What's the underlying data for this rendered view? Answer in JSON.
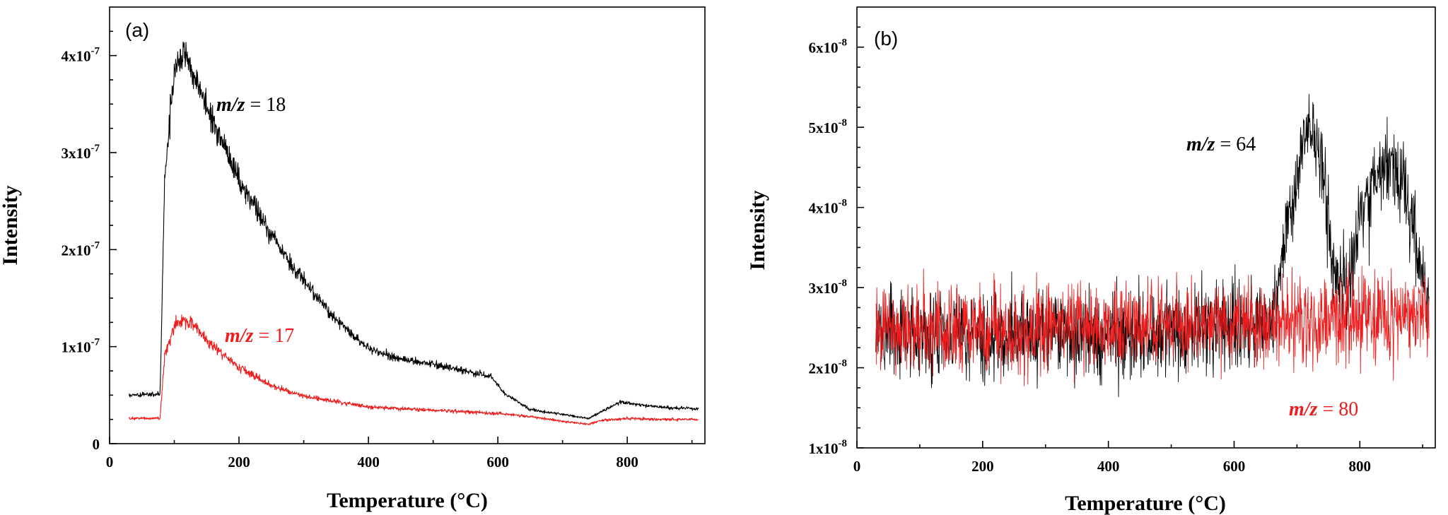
{
  "chart_data": [
    {
      "type": "line",
      "panel_label": "(a)",
      "xlabel": "Temperature (°C)",
      "ylabel": "Intensity",
      "xlim": [
        0,
        920
      ],
      "ylim": [
        0,
        4.5e-07
      ],
      "x_ticks": [
        0,
        200,
        400,
        600,
        800
      ],
      "y_ticks": [
        {
          "value": 0,
          "mantissa": "0",
          "exp": ""
        },
        {
          "value": 1e-07,
          "mantissa": "1x10",
          "exp": "-7"
        },
        {
          "value": 2e-07,
          "mantissa": "2x10",
          "exp": "-7"
        },
        {
          "value": 3e-07,
          "mantissa": "3x10",
          "exp": "-7"
        },
        {
          "value": 4e-07,
          "mantissa": "4x10",
          "exp": "-7"
        }
      ],
      "series": [
        {
          "name": "m/z = 18",
          "label_italic": "m/z",
          "label_rest": " = 18",
          "color": "#000000",
          "noise": 0.04,
          "x": [
            30,
            78,
            85,
            100,
            115,
            130,
            150,
            200,
            250,
            300,
            350,
            400,
            450,
            500,
            550,
            590,
            610,
            650,
            700,
            740,
            760,
            790,
            820,
            860,
            910
          ],
          "y": [
            5e-08,
            5.1e-08,
            2.7e-07,
            3.85e-07,
            4e-07,
            3.82e-07,
            3.5e-07,
            2.72e-07,
            2.15e-07,
            1.68e-07,
            1.28e-07,
            9.8e-08,
            8.7e-08,
            8.2e-08,
            7.5e-08,
            6.9e-08,
            5.2e-08,
            3.5e-08,
            3e-08,
            2.6e-08,
            3.3e-08,
            4.3e-08,
            4e-08,
            3.7e-08,
            3.6e-08
          ]
        },
        {
          "name": "m/z = 17",
          "label_italic": "m/z",
          "label_rest": " = 17",
          "color": "#ee1c1c",
          "noise": 0.05,
          "x": [
            30,
            78,
            85,
            100,
            115,
            130,
            150,
            200,
            250,
            300,
            350,
            400,
            450,
            500,
            550,
            600,
            650,
            700,
            740,
            760,
            800,
            850,
            910
          ],
          "y": [
            2.6e-08,
            2.6e-08,
            9e-08,
            1.22e-07,
            1.28e-07,
            1.23e-07,
            1.07e-07,
            7.8e-08,
            6e-08,
            4.9e-08,
            4.3e-08,
            3.8e-08,
            3.6e-08,
            3.45e-08,
            3.3e-08,
            3.1e-08,
            2.8e-08,
            2.3e-08,
            2e-08,
            2.4e-08,
            2.6e-08,
            2.5e-08,
            2.5e-08
          ]
        }
      ]
    },
    {
      "type": "line",
      "panel_label": "(b)",
      "xlabel": "Temperature (°C)",
      "ylabel": "Intensity",
      "xlim": [
        0,
        920
      ],
      "ylim": [
        1e-08,
        6.5e-08
      ],
      "x_ticks": [
        0,
        200,
        400,
        600,
        800
      ],
      "y_ticks": [
        {
          "value": 1e-08,
          "mantissa": "1x10",
          "exp": "-8"
        },
        {
          "value": 2e-08,
          "mantissa": "2x10",
          "exp": "-8"
        },
        {
          "value": 3e-08,
          "mantissa": "3x10",
          "exp": "-8"
        },
        {
          "value": 4e-08,
          "mantissa": "4x10",
          "exp": "-8"
        },
        {
          "value": 5e-08,
          "mantissa": "5x10",
          "exp": "-8"
        },
        {
          "value": 6e-08,
          "mantissa": "6x10",
          "exp": "-8"
        }
      ],
      "series": [
        {
          "name": "m/z = 64",
          "label_italic": "m/z",
          "label_rest": " = 64",
          "color": "#000000",
          "noise": 0.2,
          "x": [
            30,
            200,
            400,
            600,
            660,
            680,
            700,
            720,
            740,
            760,
            780,
            800,
            830,
            850,
            870,
            890,
            910
          ],
          "y": [
            2.4e-08,
            2.4e-08,
            2.4e-08,
            2.45e-08,
            2.6e-08,
            3.5e-08,
            4.4e-08,
            5.1e-08,
            4.5e-08,
            3.2e-08,
            3e-08,
            3.9e-08,
            4.4e-08,
            4.6e-08,
            4.3e-08,
            3.5e-08,
            2.8e-08
          ]
        },
        {
          "name": "m/z = 80",
          "label_italic": "m/z",
          "label_rest": " = 80",
          "color": "#ee1c1c",
          "noise": 0.2,
          "x": [
            30,
            200,
            400,
            600,
            800,
            910
          ],
          "y": [
            2.45e-08,
            2.45e-08,
            2.5e-08,
            2.55e-08,
            2.6e-08,
            2.65e-08
          ]
        }
      ]
    }
  ]
}
